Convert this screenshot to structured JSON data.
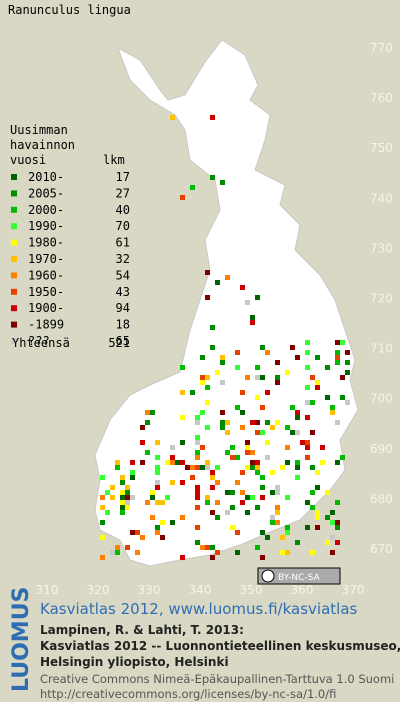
{
  "title": "Ranunculus lingua",
  "legend": {
    "heading": [
      "Uusimman",
      "havainnon",
      "vuosi"
    ],
    "count_heading": "lkm",
    "rows": [
      {
        "label": "2010-",
        "count": 17,
        "color": "#006400"
      },
      {
        "label": "2005-",
        "count": 27,
        "color": "#008c00"
      },
      {
        "label": "2000-",
        "count": 40,
        "color": "#00bb00"
      },
      {
        "label": "1990-",
        "count": 70,
        "color": "#33ff33"
      },
      {
        "label": "1980-",
        "count": 61,
        "color": "#ffff00"
      },
      {
        "label": "1970-",
        "count": 32,
        "color": "#ffc000"
      },
      {
        "label": "1960-",
        "count": 54,
        "color": "#ff8000"
      },
      {
        "label": "1950-",
        "count": 43,
        "color": "#e84000"
      },
      {
        "label": "1900-",
        "count": 94,
        "color": "#cc0000"
      },
      {
        "label": "-1899",
        "count": 18,
        "color": "#800000"
      },
      {
        "label": "???",
        "count": 65,
        "color": "#c8c8c8"
      }
    ],
    "total_label": "Yhteensä",
    "total": 521
  },
  "axes": {
    "y_labels": [
      770,
      760,
      750,
      740,
      730,
      720,
      710,
      700,
      690,
      680,
      670
    ],
    "x_labels": [
      310,
      320,
      330,
      340,
      350,
      360,
      370
    ]
  },
  "badge": "BY-NC-SA",
  "footer": {
    "logo": "LUOMUS",
    "link": "Kasviatlas 2012, www.luomus.fi/kasviatlas",
    "citation": [
      "Lampinen, R. & Lahti, T. 2013:",
      "Kasviatlas 2012 -- Luonnontieteellinen keskusmuseo,",
      "Helsingin yliopisto, Helsinki"
    ],
    "license": [
      "Creative Commons Nimeä-Epäkaupallinen-Tarttuva 1.0 Suomi",
      "http://creativecommons.org/licenses/by-nc-sa/1.0/fi"
    ]
  }
}
